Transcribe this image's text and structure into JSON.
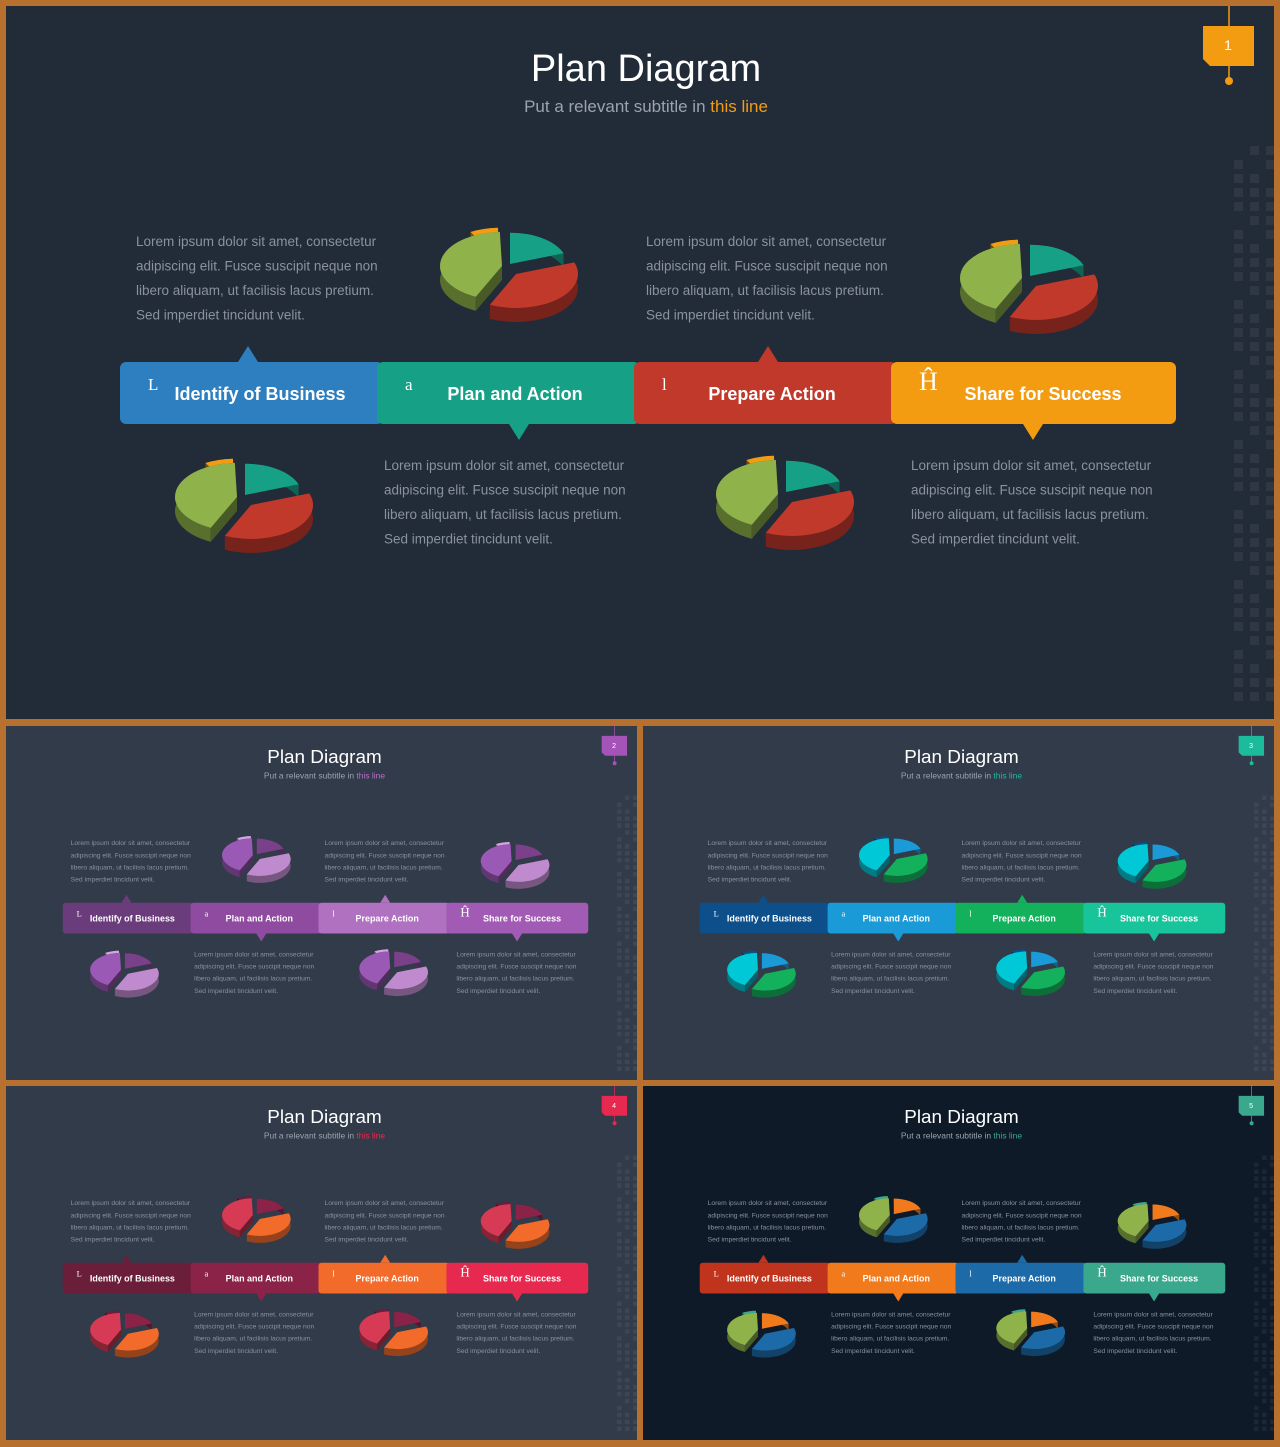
{
  "slides": [
    {
      "number": "1",
      "title": "Plan Diagram",
      "subtitle_prefix": "Put a relevant subtitle in ",
      "subtitle_highlight": "this line",
      "background": "#222b38",
      "highlight_color": "#f39c12",
      "badge_color": "#f39c12",
      "steps": [
        {
          "icon": "L",
          "label": "Identify  of Business",
          "color": "#2e7fc0"
        },
        {
          "icon": "a",
          "label": "Plan and Action",
          "color": "#16a085"
        },
        {
          "icon": "l",
          "label": "Prepare Action",
          "color": "#c0392b"
        },
        {
          "icon": "Ĥ",
          "label": "Share for Success",
          "color": "#f39c12"
        }
      ],
      "pie_colors": [
        "#16a085",
        "#c0392b",
        "#8fb34a",
        "#f39c12"
      ]
    },
    {
      "number": "2",
      "title": "Plan Diagram",
      "subtitle_prefix": "Put a relevant subtitle in ",
      "subtitle_highlight": "this line",
      "background": "#323b4a",
      "highlight_color": "#b670c4",
      "badge_color": "#a453b7",
      "steps": [
        {
          "icon": "L",
          "label": "Identify  of Business",
          "color": "#6b3c7c"
        },
        {
          "icon": "a",
          "label": "Plan and Action",
          "color": "#8e4ba0"
        },
        {
          "icon": "l",
          "label": "Prepare Action",
          "color": "#b071c0"
        },
        {
          "icon": "Ĥ",
          "label": "Share for Success",
          "color": "#a25bb4"
        }
      ],
      "pie_colors": [
        "#7a4089",
        "#c08bce",
        "#9b59b6",
        "#d4a6df"
      ]
    },
    {
      "number": "3",
      "title": "Plan Diagram",
      "subtitle_prefix": "Put a relevant subtitle in ",
      "subtitle_highlight": "this line",
      "background": "#323b4a",
      "highlight_color": "#1abc9c",
      "badge_color": "#1abc9c",
      "steps": [
        {
          "icon": "L",
          "label": "Identify  of Business",
          "color": "#0d4f8b"
        },
        {
          "icon": "a",
          "label": "Plan and Action",
          "color": "#1a9bd7"
        },
        {
          "icon": "l",
          "label": "Prepare Action",
          "color": "#13b15c"
        },
        {
          "icon": "Ĥ",
          "label": "Share for Success",
          "color": "#18c59a"
        }
      ],
      "pie_colors": [
        "#1a9bd7",
        "#13b15c",
        "#00c8d7",
        "#0d4f8b"
      ]
    },
    {
      "number": "4",
      "title": "Plan Diagram",
      "subtitle_prefix": "Put a relevant subtitle in ",
      "subtitle_highlight": "this line",
      "background": "#323b4a",
      "highlight_color": "#e8294f",
      "badge_color": "#e8294f",
      "steps": [
        {
          "icon": "L",
          "label": "Identify  of Business",
          "color": "#6b1e3a"
        },
        {
          "icon": "a",
          "label": "Plan and Action",
          "color": "#8b2248"
        },
        {
          "icon": "l",
          "label": "Prepare Action",
          "color": "#f26b2a"
        },
        {
          "icon": "Ĥ",
          "label": "Share for Success",
          "color": "#e8294f"
        }
      ],
      "pie_colors": [
        "#8b2248",
        "#f26b2a",
        "#d63a55",
        "#6b1e3a"
      ]
    },
    {
      "number": "5",
      "title": "Plan Diagram",
      "subtitle_prefix": "Put a relevant subtitle in ",
      "subtitle_highlight": "this line",
      "background": "#0f1a28",
      "highlight_color": "#3aa88d",
      "badge_color": "#3aa88d",
      "steps": [
        {
          "icon": "L",
          "label": "Identify  of Business",
          "color": "#c0341d"
        },
        {
          "icon": "a",
          "label": "Plan and Action",
          "color": "#f07a1c"
        },
        {
          "icon": "l",
          "label": "Prepare Action",
          "color": "#1d6aa8"
        },
        {
          "icon": "Ĥ",
          "label": "Share for Success",
          "color": "#3aa88d"
        }
      ],
      "pie_colors": [
        "#f07a1c",
        "#1d6aa8",
        "#8fb34a",
        "#3aa88d"
      ]
    }
  ],
  "body_text_lines": [
    "Lorem ipsum dolor sit amet, consectetur",
    "adipiscing elit. Fusce suscipit neque non",
    "libero aliquam, ut facilisis lacus pretium.",
    "Sed imperdiet tincidunt velit."
  ]
}
